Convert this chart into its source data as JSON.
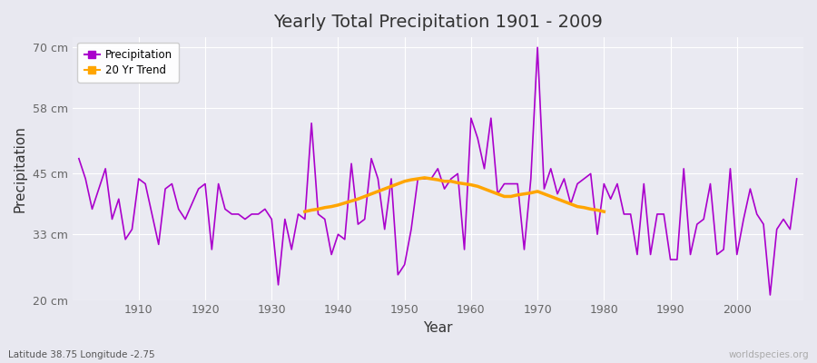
{
  "title": "Yearly Total Precipitation 1901 - 2009",
  "xlabel": "Year",
  "ylabel": "Precipitation",
  "subtitle": "Latitude 38.75 Longitude -2.75",
  "watermark": "worldspecies.org",
  "years": [
    1901,
    1902,
    1903,
    1904,
    1905,
    1906,
    1907,
    1908,
    1909,
    1910,
    1911,
    1912,
    1913,
    1914,
    1915,
    1916,
    1917,
    1918,
    1919,
    1920,
    1921,
    1922,
    1923,
    1924,
    1925,
    1926,
    1927,
    1928,
    1929,
    1930,
    1931,
    1932,
    1933,
    1934,
    1935,
    1936,
    1937,
    1938,
    1939,
    1940,
    1941,
    1942,
    1943,
    1944,
    1945,
    1946,
    1947,
    1948,
    1949,
    1950,
    1951,
    1952,
    1953,
    1954,
    1955,
    1956,
    1957,
    1958,
    1959,
    1960,
    1961,
    1962,
    1963,
    1964,
    1965,
    1966,
    1967,
    1968,
    1969,
    1970,
    1971,
    1972,
    1973,
    1974,
    1975,
    1976,
    1977,
    1978,
    1979,
    1980,
    1981,
    1982,
    1983,
    1984,
    1985,
    1986,
    1987,
    1988,
    1989,
    1990,
    1991,
    1992,
    1993,
    1994,
    1995,
    1996,
    1997,
    1998,
    1999,
    2000,
    2001,
    2002,
    2003,
    2004,
    2005,
    2006,
    2007,
    2008,
    2009
  ],
  "precip": [
    48,
    44,
    38,
    42,
    46,
    36,
    40,
    32,
    34,
    44,
    43,
    37,
    31,
    42,
    43,
    38,
    36,
    39,
    42,
    43,
    30,
    43,
    38,
    37,
    37,
    36,
    37,
    37,
    38,
    36,
    23,
    36,
    30,
    37,
    36,
    55,
    37,
    36,
    29,
    33,
    32,
    47,
    35,
    36,
    48,
    44,
    34,
    44,
    25,
    27,
    34,
    44,
    44,
    44,
    46,
    42,
    44,
    45,
    30,
    56,
    52,
    46,
    56,
    41,
    43,
    43,
    43,
    30,
    44,
    70,
    42,
    46,
    41,
    44,
    39,
    43,
    44,
    45,
    33,
    43,
    40,
    43,
    37,
    37,
    29,
    43,
    29,
    37,
    37,
    28,
    28,
    46,
    29,
    35,
    36,
    43,
    29,
    30,
    46,
    29,
    36,
    42,
    37,
    35,
    21,
    34,
    36,
    34,
    44
  ],
  "trend_years": [
    1935,
    1936,
    1937,
    1938,
    1939,
    1940,
    1941,
    1942,
    1943,
    1944,
    1945,
    1946,
    1947,
    1948,
    1949,
    1950,
    1951,
    1952,
    1953,
    1954,
    1955,
    1956,
    1957,
    1958,
    1959,
    1960,
    1961,
    1962,
    1963,
    1964,
    1965,
    1966,
    1967,
    1968,
    1969,
    1970,
    1971,
    1972,
    1973,
    1974,
    1975,
    1976,
    1977,
    1978,
    1979,
    1980
  ],
  "trend_vals": [
    37.5,
    37.8,
    38.0,
    38.3,
    38.5,
    38.8,
    39.2,
    39.6,
    40.0,
    40.5,
    41.0,
    41.5,
    42.0,
    42.5,
    43.0,
    43.5,
    43.8,
    44.0,
    44.2,
    44.0,
    43.8,
    43.5,
    43.5,
    43.2,
    43.0,
    42.8,
    42.5,
    42.0,
    41.5,
    41.0,
    40.5,
    40.5,
    40.8,
    41.0,
    41.2,
    41.5,
    41.0,
    40.5,
    40.0,
    39.5,
    39.0,
    38.5,
    38.3,
    38.0,
    37.8,
    37.5
  ],
  "line_color": "#AA00CC",
  "trend_color": "#FFA500",
  "fig_bg": "#E8E8F0",
  "plot_bg": "#EAEAF2",
  "grid_color": "#FFFFFF",
  "ylim": [
    20,
    72
  ],
  "yticks": [
    20,
    33,
    45,
    58,
    70
  ],
  "ytick_labels": [
    "20 cm",
    "33 cm",
    "45 cm",
    "58 cm",
    "70 cm"
  ],
  "xlim": [
    1900,
    2010
  ],
  "xticks": [
    1910,
    1920,
    1930,
    1940,
    1950,
    1960,
    1970,
    1980,
    1990,
    2000
  ]
}
